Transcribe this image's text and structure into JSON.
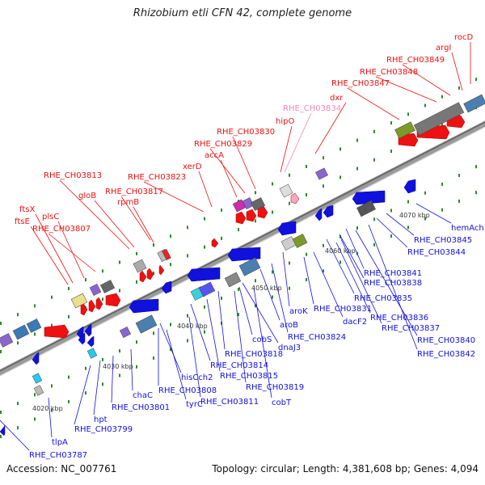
{
  "title": "Rhizobium etli CFN 42, complete genome",
  "footer": {
    "accession": "Accession: NC_007761",
    "summary": "Topology: circular; Length: 4,381,608 bp; Genes: 4,094"
  },
  "colors": {
    "forward": "#ee1111",
    "reverse": "#1111dd",
    "pseudo": "#ee88bb",
    "backbone": "#888888"
  },
  "kbp_labels": [
    "4020 kbp",
    "4030 kbp",
    "4040 kbp",
    "4050 kbp",
    "4060 kbp",
    "4070 kbp"
  ],
  "forward_genes": [
    "rocD",
    "argI",
    "RHE_CH03849",
    "RHE_CH03848",
    "RHE_CH03847",
    "dxr",
    "hipO",
    "RHE_CH03830",
    "RHE_CH03829",
    "accA",
    "xerD",
    "RHE_CH03823",
    "RHE_CH03813",
    "RHE_CH03817",
    "gloB",
    "rpmB",
    "ftsX",
    "plsC",
    "ftsE",
    "RHE_CH03807"
  ],
  "pseudo_genes": [
    "RHE_CH03834"
  ],
  "reverse_genes": [
    "hemAch",
    "RHE_CH03845",
    "RHE_CH03844",
    "RHE_CH03841",
    "RHE_CH03838",
    "RHE_CH03835",
    "RHE_CH03836",
    "RHE_CH03837",
    "RHE_CH03840",
    "RHE_CH03842",
    "aroK",
    "RHE_CH03831",
    "dacF2",
    "aroB",
    "RHE_CH03824",
    "cobS",
    "RHE_CH03818",
    "dnaJ3",
    "RHE_CH03814",
    "RHE_CH03815",
    "RHE_CH03819",
    "hisCch2",
    "RHE_CH03808",
    "cobT",
    "tyrC",
    "RHE_CH03811",
    "chaC",
    "RHE_CH03801",
    "hpt",
    "RHE_CH03799",
    "tlpA",
    "RHE_CH03787"
  ]
}
